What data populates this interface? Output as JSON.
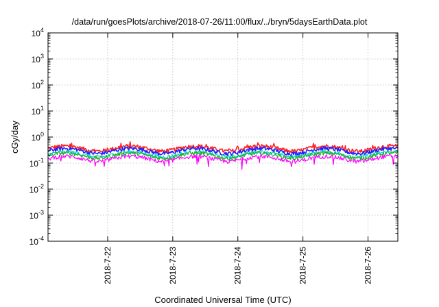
{
  "chart_data": {
    "type": "line",
    "title": "/data/run/goesPlots/archive/2018-07-26/11:00/flux/../bryn/5daysEarthData.plot",
    "xlabel": "Coordinated Universal Time (UTC)",
    "ylabel": "cGy/day",
    "yscale": "log",
    "ylim": [
      0.0001,
      10000
    ],
    "y_ticks": [
      {
        "base": "10",
        "exp": "-4",
        "value": 0.0001
      },
      {
        "base": "10",
        "exp": "-3",
        "value": 0.001
      },
      {
        "base": "10",
        "exp": "-2",
        "value": 0.01
      },
      {
        "base": "10",
        "exp": "-1",
        "value": 0.1
      },
      {
        "base": "10",
        "exp": "0",
        "value": 1
      },
      {
        "base": "10",
        "exp": "1",
        "value": 10
      },
      {
        "base": "10",
        "exp": "2",
        "value": 100
      },
      {
        "base": "10",
        "exp": "3",
        "value": 1000
      },
      {
        "base": "10",
        "exp": "4",
        "value": 10000
      }
    ],
    "xlim": [
      "2018-07-21T02:00",
      "2018-07-26T11:00"
    ],
    "x_ticks": [
      {
        "label": "2018-7-22",
        "value": "2018-07-22T00:00"
      },
      {
        "label": "2018-7-23",
        "value": "2018-07-23T00:00"
      },
      {
        "label": "2018-7-24",
        "value": "2018-07-24T00:00"
      },
      {
        "label": "2018-7-25",
        "value": "2018-07-25T00:00"
      },
      {
        "label": "2018-7-26",
        "value": "2018-07-26T00:00"
      }
    ],
    "grid": true,
    "series": [
      {
        "color": "#ff2020",
        "approx_level": 0.37
      },
      {
        "color": "#2020ff",
        "approx_level": 0.3
      },
      {
        "color": "#00d0d0",
        "approx_level": 0.22
      },
      {
        "color": "#20b020",
        "approx_level": 0.2
      },
      {
        "color": "#ff00ff",
        "approx_level": 0.15
      }
    ]
  }
}
